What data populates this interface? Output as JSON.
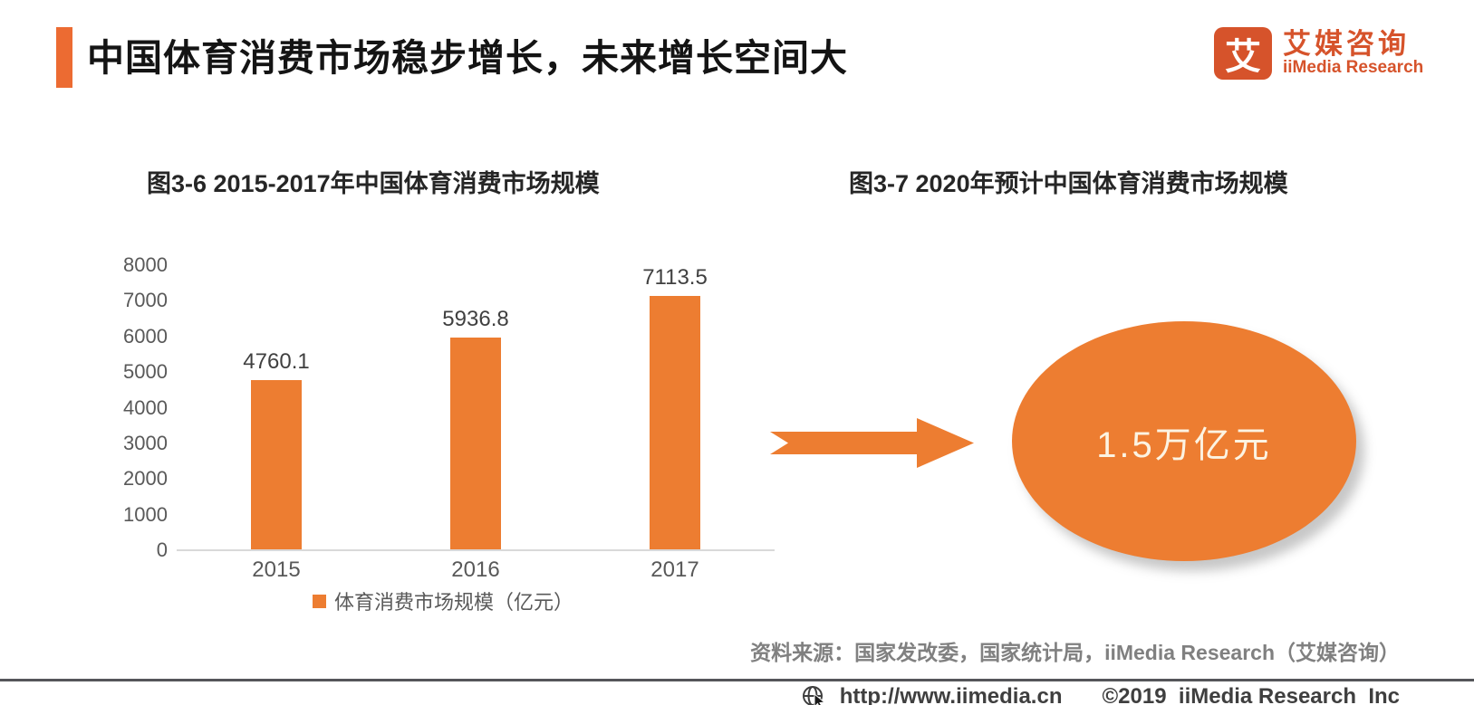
{
  "header": {
    "title": "中国体育消费市场稳步增长，未来增长空间大",
    "logo": {
      "glyph": "艾",
      "name_cn": "艾媒咨询",
      "name_en": "iiMedia Research"
    }
  },
  "chart_data": [
    {
      "type": "bar",
      "title": "图3-6 2015-2017年中国体育消费市场规模",
      "categories": [
        "2015",
        "2016",
        "2017"
      ],
      "values": [
        4760.1,
        5936.8,
        7113.5
      ],
      "legend": "体育消费市场规模（亿元）",
      "ylim": [
        0,
        8000
      ],
      "ytick_step": 1000,
      "grid": false,
      "legend_position": "bottom",
      "bar_color": "#ED7D31"
    },
    {
      "type": "pie",
      "title": "图3-7 2020年预计中国体育消费市场规模",
      "shape": "ellipse-callout",
      "value_label": "1.5万亿元",
      "value": 15000,
      "unit": "亿元",
      "color": "#ED7D31"
    }
  ],
  "source_note": "资料来源：国家发改委，国家统计局，iiMedia Research（艾媒咨询）",
  "footer": {
    "url": "http://www.iimedia.cn",
    "copyright": "©2019  iiMedia Research  Inc"
  },
  "colors": {
    "chart_orange": "#ED7D31",
    "logo_orange": "#D6532B",
    "accent_orange": "#EC6B32",
    "axis_gray": "#595959",
    "divider_gray": "#55565A"
  }
}
